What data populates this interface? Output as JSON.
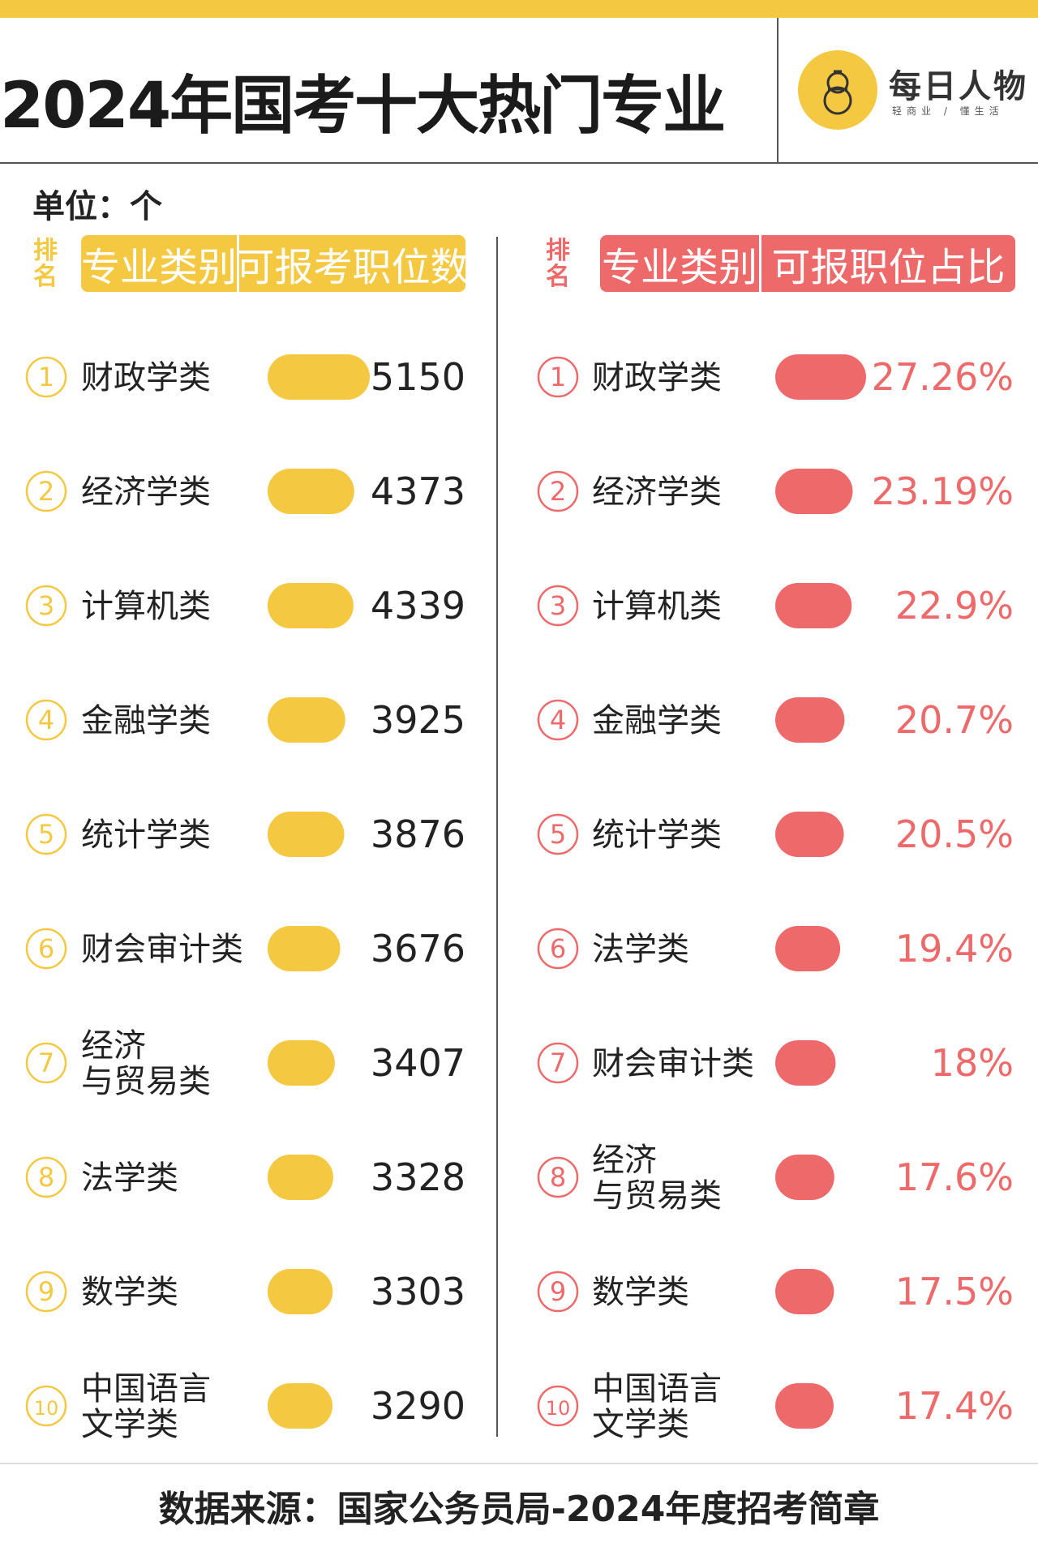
{
  "header": {
    "title": "2024年国考十大热门专业",
    "logo_name": "每日人物",
    "logo_slogan": "轻商业 / 懂生活"
  },
  "unit": "单位：个",
  "colors": {
    "yellow": "#f5c842",
    "red": "#ee6a6a",
    "text": "#222222"
  },
  "left_header": {
    "rank": "排名",
    "category": "专业类别",
    "value": "可报考职位数"
  },
  "right_header": {
    "rank": "排名",
    "category": "专业类别",
    "value": "可报职位占比"
  },
  "chart_data": [
    {
      "type": "bar",
      "value_header": "可报考职位数",
      "categories": [
        "财政学类",
        "经济学类",
        "计算机类",
        "金融学类",
        "统计学类",
        "财会审计类",
        "经济与贸易类",
        "法学类",
        "数学类",
        "中国语言文学类"
      ],
      "values": [
        5150,
        4373,
        4339,
        3925,
        3876,
        3676,
        3407,
        3328,
        3303,
        3290
      ],
      "value_labels": [
        "5150",
        "4373",
        "4339",
        "3925",
        "3876",
        "3676",
        "3407",
        "3328",
        "3303",
        "3290"
      ],
      "ranks": [
        "①",
        "②",
        "③",
        "④",
        "⑤",
        "⑥",
        "⑦",
        "⑧",
        "⑨",
        "⑩"
      ],
      "color": "#f5c842"
    },
    {
      "type": "bar",
      "value_header": "可报职位占比",
      "categories": [
        "财政学类",
        "经济学类",
        "计算机类",
        "金融学类",
        "统计学类",
        "法学类",
        "财会审计类",
        "经济与贸易类",
        "数学类",
        "中国语言文学类"
      ],
      "values": [
        27.26,
        23.19,
        22.9,
        20.7,
        20.5,
        19.4,
        18,
        17.6,
        17.5,
        17.4
      ],
      "value_labels": [
        "27.26%",
        "23.19%",
        "22.9%",
        "20.7%",
        "20.5%",
        "19.4%",
        "18%",
        "17.6%",
        "17.5%",
        "17.4%"
      ],
      "ranks": [
        "①",
        "②",
        "③",
        "④",
        "⑤",
        "⑥",
        "⑦",
        "⑧",
        "⑨",
        "⑩"
      ],
      "color": "#ee6a6a"
    }
  ],
  "footer": "数据来源：国家公务员局-2024年度招考简章"
}
